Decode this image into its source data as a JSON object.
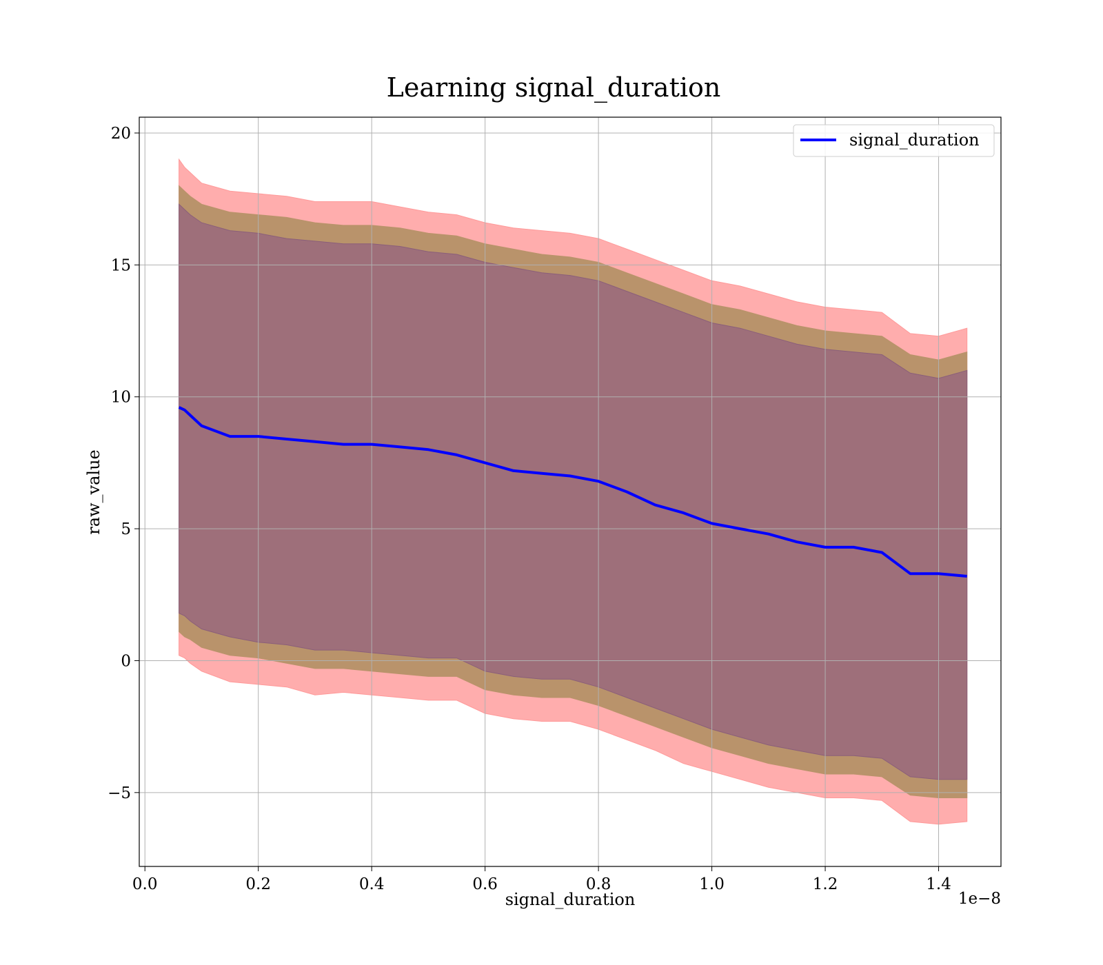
{
  "chart_data": {
    "type": "line",
    "title": "Learning signal_duration",
    "xlabel": "signal_duration",
    "ylabel": "raw_value",
    "x_offset_label": "1e−8",
    "xlim": [
      -0.01,
      1.51
    ],
    "ylim": [
      -7.8,
      20.6
    ],
    "x_ticks": [
      0.0,
      0.2,
      0.4,
      0.6,
      0.8,
      1.0,
      1.2,
      1.4
    ],
    "x_tick_labels": [
      "0.0",
      "0.2",
      "0.4",
      "0.6",
      "0.8",
      "1.0",
      "1.2",
      "1.4"
    ],
    "y_ticks": [
      -5,
      0,
      5,
      10,
      15,
      20
    ],
    "y_tick_labels": [
      "−5",
      "0",
      "5",
      "10",
      "15",
      "20"
    ],
    "grid": true,
    "legend": {
      "position": "top-right",
      "entries": [
        "signal_duration"
      ]
    },
    "colors": {
      "line": "#0000ff",
      "outer_band": "#ff9999",
      "middle_band": "#b9936b",
      "inner_band": "#9e6f7a",
      "grid": "#b0b0b0"
    },
    "series": [
      {
        "name": "signal_duration",
        "x": [
          0.06,
          0.07,
          0.08,
          0.1,
          0.15,
          0.2,
          0.25,
          0.3,
          0.35,
          0.4,
          0.45,
          0.5,
          0.55,
          0.6,
          0.65,
          0.7,
          0.75,
          0.8,
          0.85,
          0.9,
          0.95,
          1.0,
          1.05,
          1.1,
          1.15,
          1.2,
          1.25,
          1.3,
          1.35,
          1.4,
          1.45
        ],
        "values": [
          9.6,
          9.5,
          9.3,
          8.9,
          8.5,
          8.5,
          8.4,
          8.3,
          8.2,
          8.2,
          8.1,
          8.0,
          7.8,
          7.5,
          7.2,
          7.1,
          7.0,
          6.8,
          6.4,
          5.9,
          5.6,
          5.2,
          5.0,
          4.8,
          4.5,
          4.3,
          4.3,
          4.1,
          3.3,
          3.3,
          3.2
        ],
        "outer_upper": [
          19.0,
          18.7,
          18.5,
          18.1,
          17.8,
          17.7,
          17.6,
          17.4,
          17.4,
          17.4,
          17.2,
          17.0,
          16.9,
          16.6,
          16.4,
          16.3,
          16.2,
          16.0,
          15.6,
          15.2,
          14.8,
          14.4,
          14.2,
          13.9,
          13.6,
          13.4,
          13.3,
          13.2,
          12.4,
          12.3,
          12.6
        ],
        "outer_lower": [
          0.2,
          0.1,
          -0.1,
          -0.4,
          -0.8,
          -0.9,
          -1.0,
          -1.3,
          -1.2,
          -1.3,
          -1.4,
          -1.5,
          -1.5,
          -2.0,
          -2.2,
          -2.3,
          -2.3,
          -2.6,
          -3.0,
          -3.4,
          -3.9,
          -4.2,
          -4.5,
          -4.8,
          -5.0,
          -5.2,
          -5.2,
          -5.3,
          -6.1,
          -6.2,
          -6.1
        ],
        "middle_upper": [
          18.0,
          17.8,
          17.6,
          17.3,
          17.0,
          16.9,
          16.8,
          16.6,
          16.5,
          16.5,
          16.4,
          16.2,
          16.1,
          15.8,
          15.6,
          15.4,
          15.3,
          15.1,
          14.7,
          14.3,
          13.9,
          13.5,
          13.3,
          13.0,
          12.7,
          12.5,
          12.4,
          12.3,
          11.6,
          11.4,
          11.7
        ],
        "middle_lower": [
          1.1,
          0.9,
          0.8,
          0.5,
          0.2,
          0.1,
          -0.1,
          -0.3,
          -0.3,
          -0.4,
          -0.5,
          -0.6,
          -0.6,
          -1.1,
          -1.3,
          -1.4,
          -1.4,
          -1.7,
          -2.1,
          -2.5,
          -2.9,
          -3.3,
          -3.6,
          -3.9,
          -4.1,
          -4.3,
          -4.3,
          -4.4,
          -5.1,
          -5.2,
          -5.2
        ],
        "inner_upper": [
          17.3,
          17.1,
          16.9,
          16.6,
          16.3,
          16.2,
          16.0,
          15.9,
          15.8,
          15.8,
          15.7,
          15.5,
          15.4,
          15.1,
          14.9,
          14.7,
          14.6,
          14.4,
          14.0,
          13.6,
          13.2,
          12.8,
          12.6,
          12.3,
          12.0,
          11.8,
          11.7,
          11.6,
          10.9,
          10.7,
          11.0
        ],
        "inner_lower": [
          1.8,
          1.7,
          1.5,
          1.2,
          0.9,
          0.7,
          0.6,
          0.4,
          0.4,
          0.3,
          0.2,
          0.1,
          0.1,
          -0.4,
          -0.6,
          -0.7,
          -0.7,
          -1.0,
          -1.4,
          -1.8,
          -2.2,
          -2.6,
          -2.9,
          -3.2,
          -3.4,
          -3.6,
          -3.6,
          -3.7,
          -4.4,
          -4.5,
          -4.5
        ]
      }
    ]
  }
}
